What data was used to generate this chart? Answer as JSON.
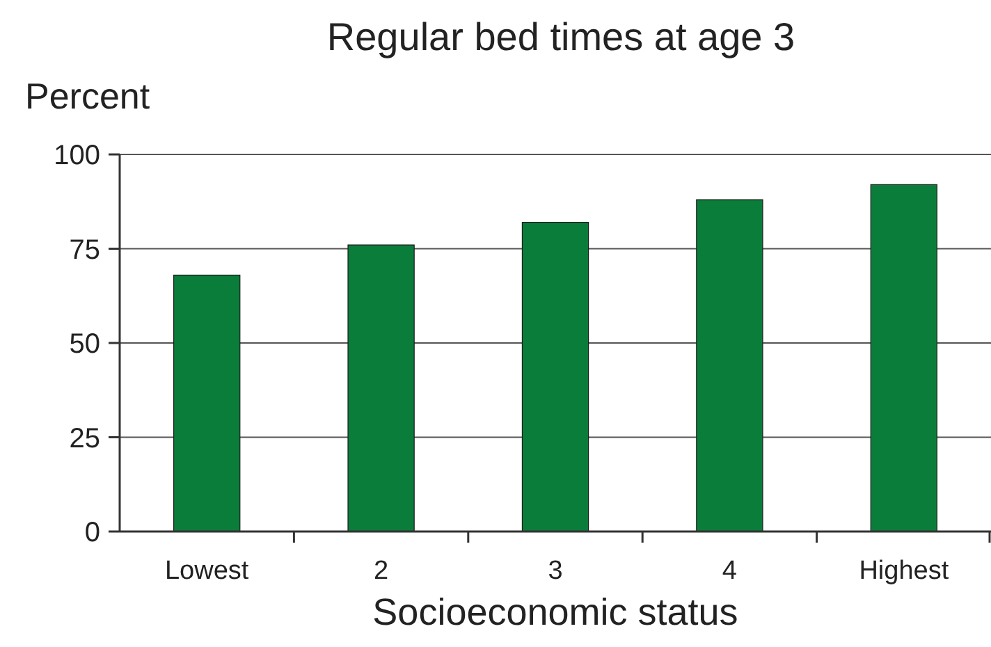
{
  "chart_data": {
    "type": "bar",
    "title": "Regular bed times at age 3",
    "ylabel": "Percent",
    "xlabel": "Socioeconomic status",
    "categories": [
      "Lowest",
      "2",
      "3",
      "4",
      "Highest"
    ],
    "values": [
      68,
      76,
      82,
      88,
      92
    ],
    "color": "#0b7d3b",
    "ylim": [
      0,
      100
    ],
    "yticks": [
      0,
      25,
      50,
      75,
      100
    ],
    "grid": "y"
  }
}
